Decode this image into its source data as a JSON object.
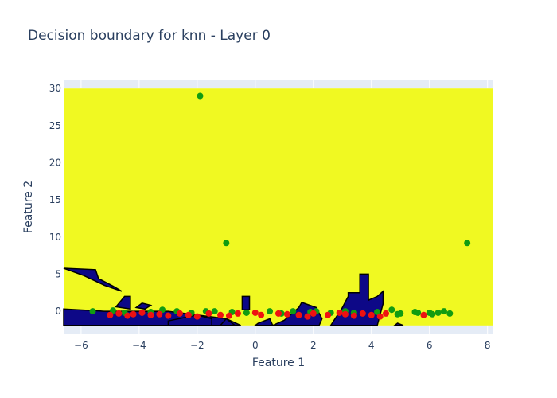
{
  "chart_data": {
    "type": "scatter",
    "title": "Decision boundary for knn - Layer 0",
    "xlabel": "Feature 1",
    "ylabel": "Feature 2",
    "xlim": [
      -6.6,
      8.2
    ],
    "ylim": [
      -3.1,
      31.2
    ],
    "xticks": [
      -6,
      -4,
      -2,
      0,
      2,
      4,
      6,
      8
    ],
    "yticks": [
      0,
      5,
      10,
      15,
      20,
      25,
      30
    ],
    "grid": true,
    "legend": "none",
    "colors": {
      "plot_bg": "#e5ecf6",
      "region_positive": "#f0f922",
      "region_negative": "#0d0887",
      "point_green": "#119c11",
      "point_red": "#ee1111",
      "text": "#2a3f5f"
    },
    "background_region": {
      "x": [
        -6.6,
        8.2
      ],
      "y": [
        -1.9,
        30.0
      ]
    },
    "negative_regions": [
      [
        [
          -6.6,
          0.3
        ],
        [
          -5.2,
          0.0
        ],
        [
          -3.0,
          0.0
        ],
        [
          -2.0,
          -0.5
        ],
        [
          -1.0,
          -1.0
        ],
        [
          -0.5,
          -1.9
        ],
        [
          -6.6,
          -1.9
        ]
      ],
      [
        [
          -6.6,
          5.8
        ],
        [
          -5.5,
          5.6
        ],
        [
          -5.4,
          4.4
        ],
        [
          -4.9,
          3.4
        ],
        [
          -4.6,
          2.7
        ],
        [
          -5.2,
          3.5
        ],
        [
          -5.9,
          4.8
        ]
      ],
      [
        [
          -4.8,
          0.6
        ],
        [
          -4.5,
          2.0
        ],
        [
          -4.3,
          2.0
        ],
        [
          -4.3,
          0.3
        ]
      ],
      [
        [
          -4.1,
          0.5
        ],
        [
          -3.9,
          1.1
        ],
        [
          -3.6,
          0.8
        ],
        [
          -3.8,
          0.3
        ]
      ],
      [
        [
          -3.0,
          -1.3
        ],
        [
          -2.0,
          -0.5
        ],
        [
          -1.5,
          -1.0
        ],
        [
          -1.5,
          -1.9
        ],
        [
          -3.0,
          -1.9
        ]
      ],
      [
        [
          -1.0,
          -1.0
        ],
        [
          -0.7,
          -1.9
        ],
        [
          -1.2,
          -1.9
        ]
      ],
      [
        [
          -0.45,
          0.2
        ],
        [
          -0.45,
          2.0
        ],
        [
          -0.2,
          2.0
        ],
        [
          -0.2,
          0.2
        ]
      ],
      [
        [
          0.0,
          -1.9
        ],
        [
          0.1,
          -1.6
        ],
        [
          0.5,
          -1.0
        ],
        [
          0.6,
          -1.9
        ]
      ],
      [
        [
          0.6,
          -1.9
        ],
        [
          1.0,
          -1.2
        ],
        [
          1.5,
          0.5
        ],
        [
          1.6,
          1.2
        ],
        [
          2.1,
          0.5
        ],
        [
          2.3,
          -1.0
        ],
        [
          2.2,
          -1.9
        ]
      ],
      [
        [
          2.6,
          -1.9
        ],
        [
          2.7,
          -1.3
        ],
        [
          3.0,
          0.5
        ],
        [
          3.2,
          2.0
        ],
        [
          3.2,
          2.5
        ],
        [
          3.6,
          2.5
        ],
        [
          3.6,
          5.0
        ],
        [
          3.9,
          5.0
        ],
        [
          3.9,
          1.5
        ],
        [
          4.2,
          2.0
        ],
        [
          4.4,
          2.7
        ],
        [
          4.4,
          1.0
        ],
        [
          4.2,
          -1.9
        ]
      ],
      [
        [
          4.8,
          -1.9
        ],
        [
          4.9,
          -1.6
        ],
        [
          5.1,
          -1.9
        ]
      ]
    ],
    "series": [
      {
        "color": "green",
        "x": [
          -1.9,
          -1.0,
          7.3,
          -5.6,
          -4.5,
          -3.6,
          -3.2,
          -2.7,
          -2.2,
          -1.7,
          -1.4,
          -0.8,
          -0.3,
          0.5,
          0.9,
          1.3,
          1.9,
          2.6,
          3.1,
          3.4,
          4.2,
          4.7,
          4.9,
          5.0,
          5.5,
          5.6,
          6.0,
          6.1,
          6.3,
          6.5,
          6.7,
          2.1,
          -4.9
        ],
        "y": [
          29.0,
          9.2,
          9.2,
          0.0,
          -0.2,
          -0.1,
          0.2,
          0.0,
          -0.2,
          0.0,
          0.0,
          -0.1,
          -0.2,
          0.0,
          -0.3,
          0.0,
          -0.1,
          -0.2,
          0.0,
          -0.2,
          -0.1,
          0.2,
          -0.4,
          -0.3,
          -0.1,
          -0.2,
          -0.2,
          -0.4,
          -0.2,
          0.0,
          -0.3,
          0.0,
          0.1
        ]
      },
      {
        "color": "red",
        "x": [
          -5.0,
          -4.7,
          -4.4,
          -4.2,
          -3.9,
          -3.6,
          -3.3,
          -3.0,
          -2.6,
          -2.3,
          -2.0,
          -1.6,
          -1.2,
          -0.9,
          -0.6,
          0.0,
          0.2,
          0.8,
          1.1,
          1.5,
          1.8,
          2.0,
          2.5,
          2.9,
          3.1,
          3.4,
          3.7,
          4.0,
          4.3,
          4.5,
          5.8
        ],
        "y": [
          -0.5,
          -0.3,
          -0.6,
          -0.4,
          -0.2,
          -0.5,
          -0.4,
          -0.6,
          -0.3,
          -0.5,
          -0.7,
          -0.3,
          -0.5,
          -0.6,
          -0.3,
          -0.2,
          -0.5,
          -0.3,
          -0.4,
          -0.5,
          -0.7,
          -0.3,
          -0.5,
          -0.2,
          -0.4,
          -0.6,
          -0.3,
          -0.5,
          -0.7,
          -0.3,
          -0.5
        ]
      }
    ]
  }
}
